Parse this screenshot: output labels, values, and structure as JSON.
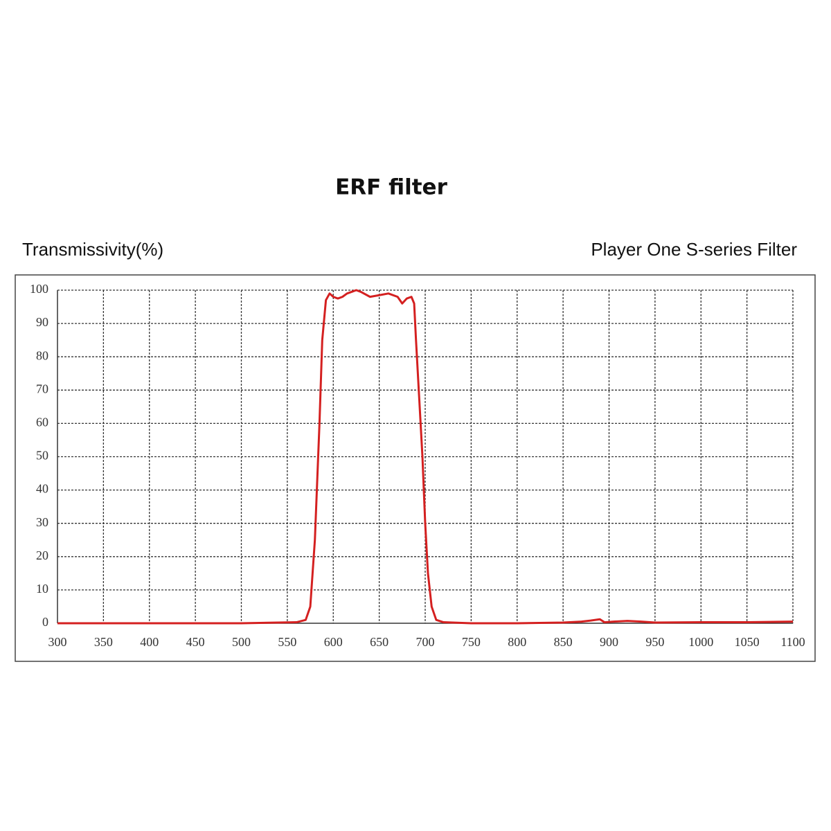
{
  "chart_data": {
    "type": "line",
    "title": "ERF filter",
    "y_label": "Transmissivity(%)",
    "subtitle": "Player One S-series Filter",
    "color": "#d42020",
    "x": [
      300,
      400,
      500,
      540,
      560,
      570,
      575,
      580,
      585,
      588,
      592,
      596,
      600,
      605,
      610,
      615,
      620,
      625,
      630,
      640,
      650,
      660,
      670,
      675,
      680,
      685,
      688,
      690,
      693,
      697,
      700,
      703,
      707,
      712,
      720,
      750,
      800,
      850,
      870,
      880,
      890,
      895,
      905,
      920,
      935,
      950,
      1000,
      1050,
      1100
    ],
    "values": [
      0,
      0,
      0,
      0.2,
      0.3,
      1,
      5,
      25,
      60,
      85,
      97,
      99,
      98,
      97.5,
      98,
      99,
      99.5,
      100,
      99.5,
      98,
      98.5,
      99,
      98,
      96,
      97.5,
      98,
      96,
      85,
      70,
      50,
      30,
      15,
      5,
      1,
      0.3,
      0,
      0,
      0.2,
      0.5,
      0.8,
      1.2,
      0.3,
      0.5,
      0.7,
      0.5,
      0.2,
      0.3,
      0.3,
      0.5
    ],
    "xlim": [
      300,
      1100
    ],
    "ylim": [
      0,
      100
    ],
    "xticks": [
      300,
      350,
      400,
      450,
      500,
      550,
      600,
      650,
      700,
      750,
      800,
      850,
      900,
      950,
      1000,
      1050,
      1100
    ],
    "yticks": [
      0,
      10,
      20,
      30,
      40,
      50,
      60,
      70,
      80,
      90,
      100
    ],
    "grid": true
  }
}
